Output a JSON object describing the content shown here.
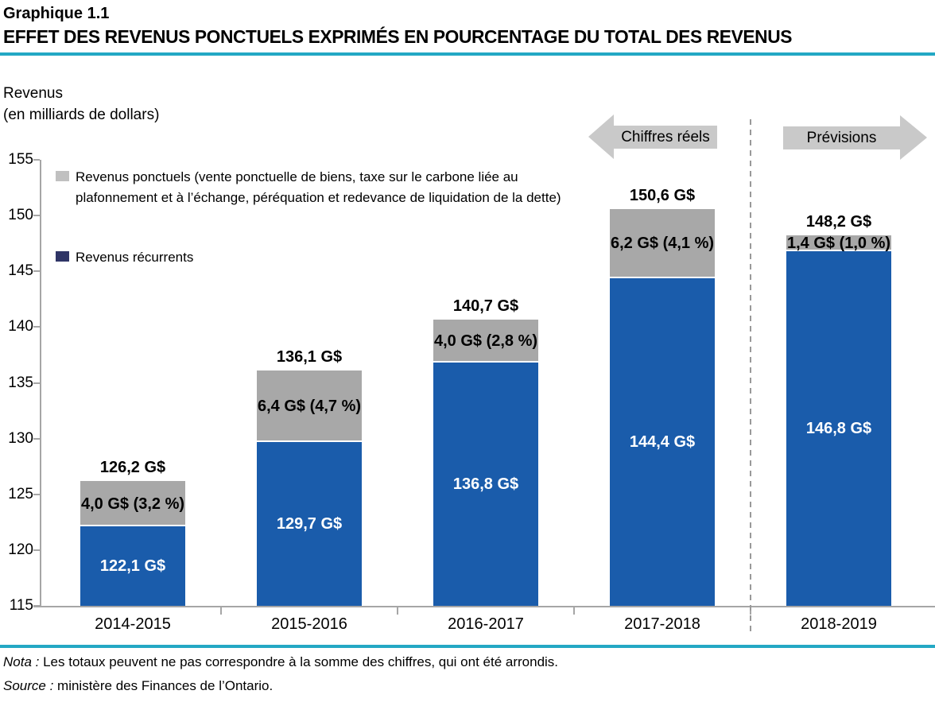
{
  "header": {
    "chart_number": "Graphique 1.1",
    "title": "EFFET DES REVENUS PONCTUELS EXPRIMÉS EN POURCENTAGE DU TOTAL DES REVENUS"
  },
  "y_axis_title": {
    "line1": "Revenus",
    "line2": "(en milliards de dollars)"
  },
  "legend": {
    "oneoff_lines": [
      "Revenus ponctuels (vente ponctuelle de biens, taxe sur le carbone liée au",
      "plafonnement et à l’échange, péréquation et redevance de liquidation de la dette)"
    ],
    "recurrent": "Revenus récurrents"
  },
  "annotations": {
    "actuals_label": "Chiffres réels",
    "forecast_label": "Prévisions"
  },
  "notes": {
    "nota_label": "Nota :",
    "nota_text": " Les totaux peuvent ne pas correspondre à la somme des chiffres, qui ont été arrondis.",
    "source_label": "Source :",
    "source_text": " ministère des Finances de l’Ontario."
  },
  "colors": {
    "recurrent_bar": "#1A5CAB",
    "oneoff_bar": "#A8A8A8",
    "legend_recurrent_swatch": "#2F3566",
    "legend_oneoff_swatch": "#C0C0C0",
    "teal_rule": "#23A8C4",
    "arrow_gray": "#C9C9C9",
    "axis_gray": "#A6A6A6",
    "dashed_line": "#999999"
  },
  "chart_data": {
    "type": "bar",
    "stacked": true,
    "title": "EFFET DES REVENUS PONCTUELS EXPRIMÉS EN POURCENTAGE DU TOTAL DES REVENUS",
    "ylabel": "Revenus (en milliards de dollars)",
    "xlabel": "",
    "grid": false,
    "legend_position": "top-left-inside",
    "categories": [
      "2014-2015",
      "2015-2016",
      "2016-2017",
      "2017-2018",
      "2018-2019"
    ],
    "series": [
      {
        "name": "Revenus récurrents",
        "values": [
          122.1,
          129.7,
          136.8,
          144.4,
          146.8
        ],
        "labels": [
          "122,1 G$",
          "129,7 G$",
          "136,8 G$",
          "144,4 G$",
          "146,8 G$"
        ]
      },
      {
        "name": "Revenus ponctuels",
        "values": [
          4.0,
          6.4,
          4.0,
          6.2,
          1.4
        ],
        "labels": [
          "4,0 G$ (3,2 %)",
          "6,4 G$ (4,7 %)",
          "4,0 G$ (2,8 %)",
          "6,2 G$ (4,1 %)",
          "1,4 G$ (1,0 %)"
        ]
      }
    ],
    "totals": [
      126.2,
      136.1,
      140.7,
      150.6,
      148.2
    ],
    "total_labels": [
      "126,2 G$",
      "136,1 G$",
      "140,7 G$",
      "150,6 G$",
      "148,2 G$"
    ],
    "ylim": [
      115,
      155
    ],
    "yticks": [
      115,
      120,
      125,
      130,
      135,
      140,
      145,
      150,
      155
    ],
    "forecast_start_index": 4
  }
}
